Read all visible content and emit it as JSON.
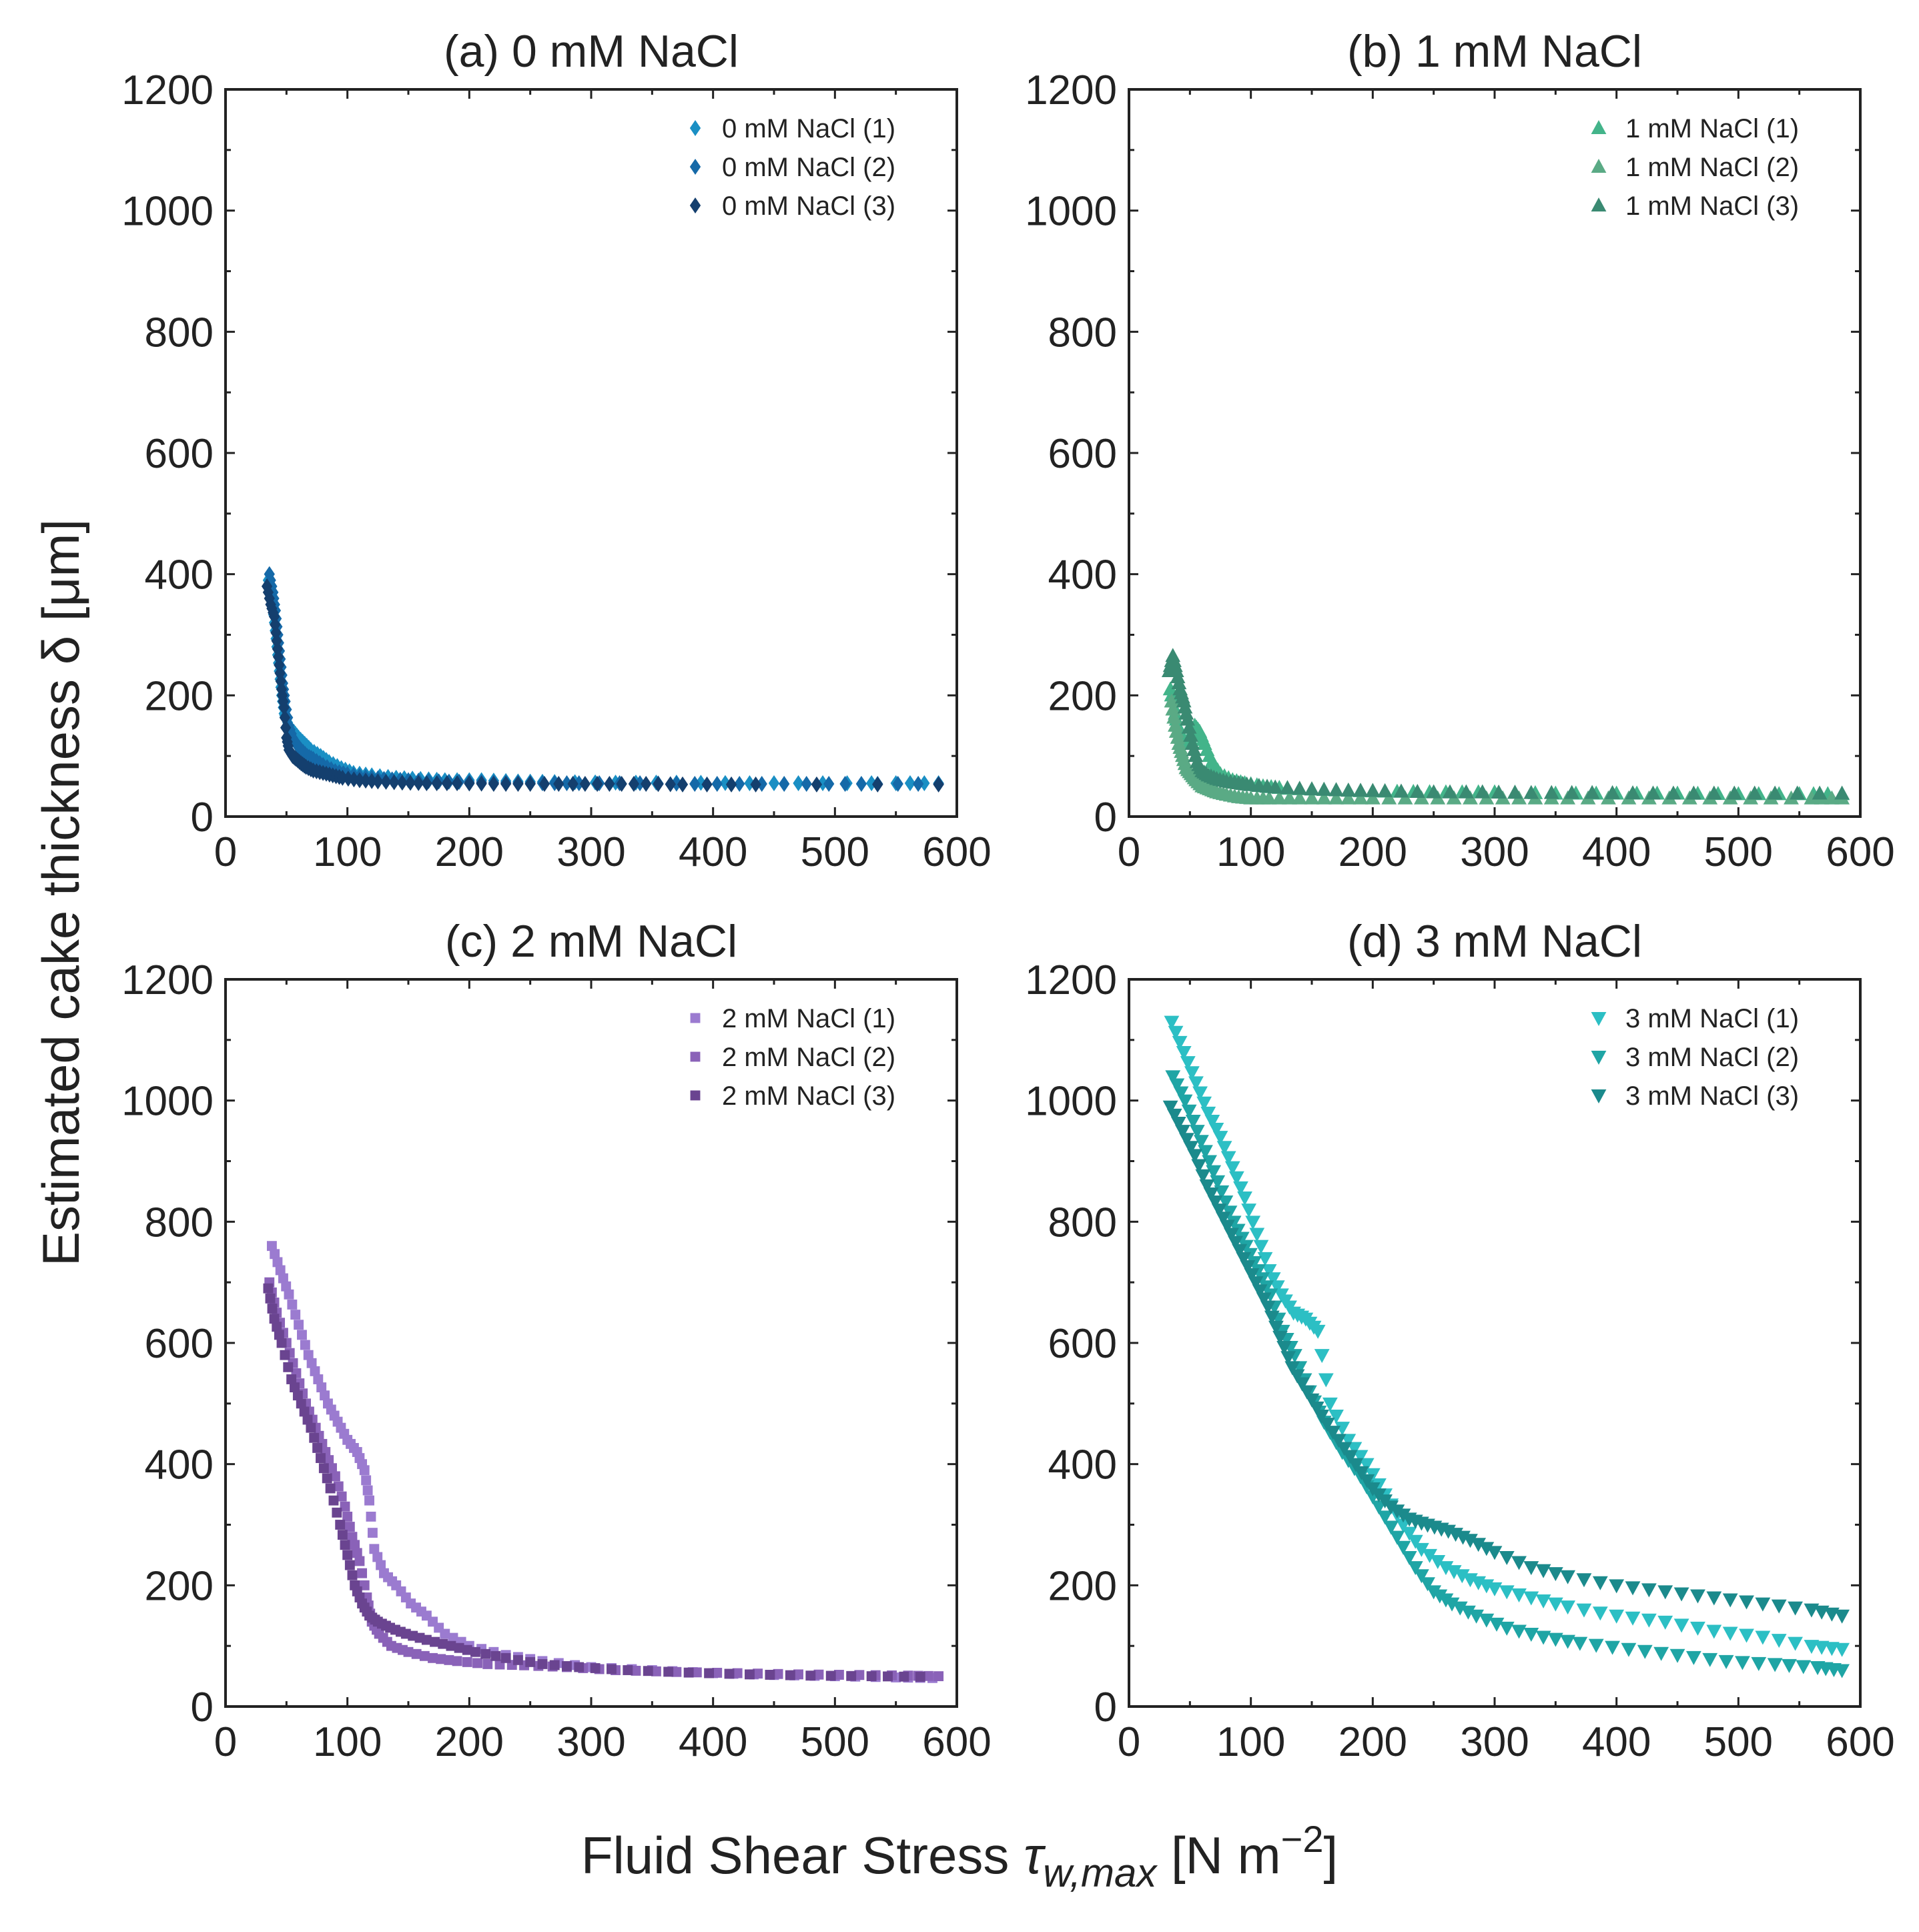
{
  "figure": {
    "ylabel": "Estimated cake thickness δ [μm]",
    "xlabel_main": "Fluid Shear Stress ",
    "xlabel_symbol": "τ",
    "xlabel_subscript": "w,max",
    "xlabel_unit": " [N m",
    "xlabel_exponent": "−2",
    "xlabel_close": "]"
  },
  "chart_data": [
    {
      "type": "scatter",
      "title": "(a) 0 mM NaCl",
      "xlim": [
        0,
        600
      ],
      "ylim": [
        0,
        1200
      ],
      "xticks": [
        "0",
        "100",
        "200",
        "300",
        "400",
        "500",
        "600"
      ],
      "yticks": [
        "0",
        "200",
        "400",
        "600",
        "800",
        "1000",
        "1200"
      ],
      "marker": "diamond",
      "legend_position": "top-right",
      "series": [
        {
          "name": "0 mM NaCl (1)",
          "color": "#1a8fc4",
          "x": [
            35,
            38,
            40,
            42,
            44,
            46,
            48,
            50,
            53,
            56,
            60,
            65,
            70,
            78,
            85,
            95,
            105,
            120,
            140,
            160,
            180,
            210,
            240,
            270,
            320,
            370,
            430,
            490,
            550,
            585
          ],
          "y": [
            390,
            360,
            320,
            280,
            240,
            200,
            170,
            160,
            145,
            140,
            130,
            120,
            110,
            100,
            90,
            80,
            72,
            68,
            64,
            62,
            60,
            60,
            58,
            57,
            56,
            56,
            55,
            55,
            55,
            55
          ]
        },
        {
          "name": "0 mM NaCl (2)",
          "color": "#1569a8",
          "x": [
            36,
            39,
            41,
            43,
            45,
            47,
            49,
            52,
            55,
            58,
            62,
            67,
            72,
            80,
            90,
            100,
            115,
            130,
            150,
            175,
            200,
            230,
            260,
            290,
            340,
            385,
            440,
            495,
            535,
            585
          ],
          "y": [
            400,
            370,
            340,
            300,
            260,
            220,
            190,
            150,
            130,
            120,
            110,
            100,
            95,
            85,
            75,
            70,
            65,
            62,
            60,
            58,
            57,
            56,
            55,
            55,
            55,
            54,
            54,
            54,
            54,
            54
          ]
        },
        {
          "name": "0 mM NaCl (3)",
          "color": "#143f6e",
          "x": [
            34,
            37,
            40,
            42,
            44,
            46,
            48,
            50,
            52,
            55,
            58,
            62,
            66,
            72,
            80,
            88,
            96,
            110,
            125,
            145,
            165,
            190,
            220,
            250,
            285,
            315,
            345,
            375,
            435,
            585
          ],
          "y": [
            380,
            350,
            330,
            290,
            250,
            210,
            180,
            130,
            110,
            100,
            95,
            88,
            82,
            76,
            72,
            68,
            64,
            60,
            58,
            56,
            55,
            55,
            54,
            54,
            54,
            54,
            54,
            53,
            53,
            53
          ]
        }
      ]
    },
    {
      "type": "scatter",
      "title": "(b) 1 mM NaCl",
      "xlim": [
        0,
        600
      ],
      "ylim": [
        0,
        1200
      ],
      "xticks": [
        "0",
        "100",
        "200",
        "300",
        "400",
        "500",
        "600"
      ],
      "yticks": [
        "0",
        "200",
        "400",
        "600",
        "800",
        "1000",
        "1200"
      ],
      "marker": "triangle-up",
      "legend_position": "top-right",
      "series": [
        {
          "name": "1 mM NaCl (1)",
          "color": "#43b48a",
          "x": [
            34,
            37,
            40,
            43,
            46,
            50,
            54,
            58,
            62,
            68,
            75,
            85,
            95,
            110,
            130,
            160,
            190,
            220,
            260,
            300,
            350,
            400,
            450,
            500,
            550,
            585
          ],
          "y": [
            210,
            180,
            150,
            130,
            120,
            130,
            150,
            140,
            120,
            90,
            70,
            60,
            55,
            50,
            46,
            44,
            42,
            41,
            40,
            40,
            38,
            38,
            38,
            37,
            37,
            37
          ]
        },
        {
          "name": "1 mM NaCl (2)",
          "color": "#5aaa85",
          "x": [
            35,
            38,
            41,
            44,
            47,
            51,
            55,
            60,
            66,
            72,
            80,
            90,
            100,
            115,
            140,
            170,
            200,
            240,
            280,
            320,
            360,
            410,
            460,
            510,
            560,
            585
          ],
          "y": [
            190,
            150,
            120,
            100,
            80,
            70,
            60,
            50,
            45,
            40,
            36,
            32,
            30,
            30,
            30,
            30,
            30,
            30,
            30,
            30,
            30,
            30,
            30,
            30,
            30,
            30
          ]
        },
        {
          "name": "1 mM NaCl (3)",
          "color": "#3a8a72",
          "x": [
            33,
            36,
            39,
            42,
            45,
            48,
            52,
            56,
            60,
            65,
            72,
            80,
            90,
            100,
            120,
            150,
            180,
            210,
            250,
            290,
            330,
            380,
            430,
            480,
            530,
            585
          ],
          "y": [
            240,
            265,
            240,
            210,
            190,
            160,
            120,
            90,
            75,
            68,
            62,
            58,
            55,
            52,
            48,
            45,
            43,
            42,
            40,
            40,
            39,
            39,
            38,
            38,
            38,
            38
          ]
        }
      ]
    },
    {
      "type": "scatter",
      "title": "(c) 2 mM NaCl",
      "xlim": [
        0,
        600
      ],
      "ylim": [
        0,
        1200
      ],
      "xticks": [
        "0",
        "100",
        "200",
        "300",
        "400",
        "500",
        "600"
      ],
      "yticks": [
        "0",
        "200",
        "400",
        "600",
        "800",
        "1000",
        "1200"
      ],
      "marker": "square",
      "legend_position": "top-right",
      "series": [
        {
          "name": "2 mM NaCl (1)",
          "color": "#9b7bd0",
          "x": [
            38,
            45,
            52,
            60,
            68,
            76,
            84,
            92,
            100,
            108,
            114,
            118,
            122,
            130,
            140,
            152,
            165,
            180,
            200,
            230,
            260,
            300,
            350,
            400,
            450,
            500,
            550,
            580
          ],
          "y": [
            760,
            720,
            680,
            630,
            580,
            540,
            500,
            470,
            440,
            420,
            390,
            340,
            260,
            220,
            200,
            170,
            150,
            120,
            100,
            85,
            75,
            65,
            60,
            55,
            52,
            50,
            48,
            47
          ]
        },
        {
          "name": "2 mM NaCl (2)",
          "color": "#8a62b8",
          "x": [
            36,
            42,
            50,
            58,
            66,
            74,
            82,
            90,
            98,
            104,
            110,
            116,
            120,
            126,
            136,
            150,
            170,
            190,
            215,
            245,
            280,
            320,
            370,
            420,
            470,
            520,
            560,
            585
          ],
          "y": [
            700,
            650,
            600,
            550,
            500,
            460,
            420,
            380,
            330,
            280,
            240,
            180,
            140,
            120,
            100,
            90,
            80,
            75,
            70,
            68,
            65,
            60,
            57,
            55,
            53,
            52,
            51,
            50
          ]
        },
        {
          "name": "2 mM NaCl (3)",
          "color": "#6a4490",
          "x": [
            35,
            40,
            46,
            54,
            62,
            70,
            78,
            86,
            94,
            100,
            106,
            112,
            118,
            125,
            135,
            148,
            165,
            185,
            205,
            230,
            260,
            290,
            330,
            380,
            430,
            480,
            530,
            570
          ],
          "y": [
            690,
            640,
            600,
            540,
            500,
            460,
            410,
            360,
            300,
            250,
            200,
            170,
            150,
            140,
            130,
            120,
            110,
            100,
            90,
            80,
            70,
            65,
            60,
            56,
            53,
            51,
            50,
            49
          ]
        }
      ]
    },
    {
      "type": "scatter",
      "title": "(d) 3 mM NaCl",
      "xlim": [
        0,
        600
      ],
      "ylim": [
        0,
        1200
      ],
      "xticks": [
        "0",
        "100",
        "200",
        "300",
        "400",
        "500",
        "600"
      ],
      "yticks": [
        "0",
        "200",
        "400",
        "600",
        "800",
        "1000",
        "1200"
      ],
      "marker": "triangle-down",
      "legend_position": "top-right",
      "series": [
        {
          "name": "3 mM NaCl (1)",
          "color": "#2cbfc4",
          "x": [
            35,
            45,
            55,
            65,
            75,
            85,
            95,
            105,
            115,
            125,
            135,
            145,
            155,
            165,
            180,
            195,
            210,
            225,
            240,
            260,
            280,
            300,
            330,
            360,
            400,
            440,
            480,
            520,
            560,
            585
          ],
          "y": [
            1130,
            1080,
            1030,
            980,
            940,
            890,
            840,
            780,
            720,
            680,
            650,
            640,
            620,
            500,
            440,
            400,
            350,
            300,
            260,
            230,
            210,
            195,
            180,
            165,
            150,
            140,
            125,
            115,
            100,
            95
          ]
        },
        {
          "name": "3 mM NaCl (2)",
          "color": "#1fa5a5",
          "x": [
            36,
            46,
            56,
            66,
            76,
            86,
            96,
            106,
            116,
            126,
            136,
            148,
            160,
            175,
            190,
            205,
            220,
            235,
            250,
            265,
            285,
            310,
            340,
            370,
            410,
            450,
            490,
            530,
            565,
            585
          ],
          "y": [
            1040,
            1000,
            950,
            900,
            850,
            800,
            760,
            720,
            680,
            620,
            580,
            520,
            470,
            420,
            380,
            330,
            280,
            230,
            190,
            170,
            150,
            130,
            115,
            105,
            95,
            85,
            75,
            70,
            65,
            60
          ]
        },
        {
          "name": "3 mM NaCl (3)",
          "color": "#1b8a8c",
          "x": [
            34,
            44,
            54,
            64,
            74,
            84,
            94,
            104,
            114,
            124,
            134,
            146,
            158,
            172,
            186,
            200,
            215,
            230,
            245,
            262,
            280,
            300,
            330,
            360,
            400,
            440,
            480,
            520,
            560,
            585
          ],
          "y": [
            990,
            950,
            910,
            860,
            820,
            780,
            740,
            700,
            660,
            610,
            560,
            520,
            480,
            440,
            400,
            360,
            330,
            310,
            300,
            290,
            275,
            255,
            230,
            215,
            200,
            190,
            180,
            170,
            160,
            150
          ]
        }
      ]
    }
  ]
}
